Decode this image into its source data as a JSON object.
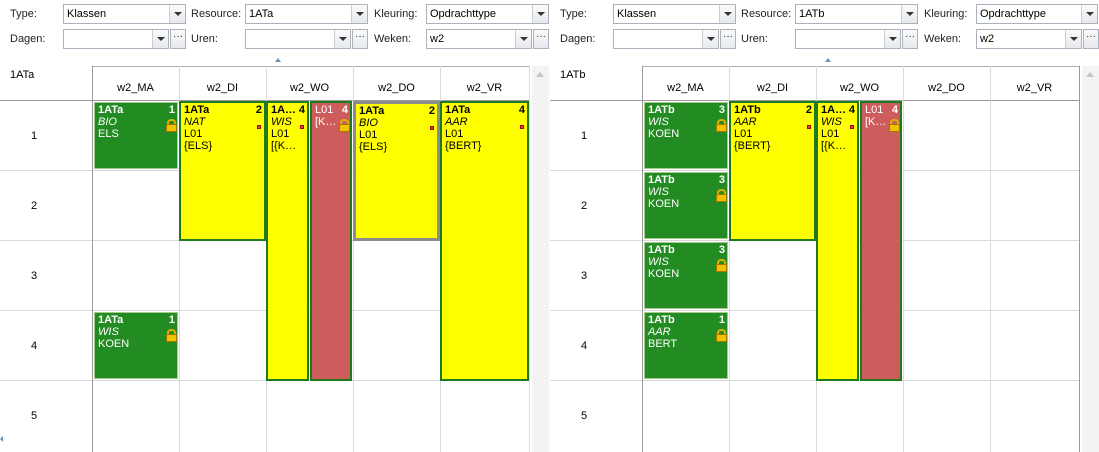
{
  "left": {
    "filters": {
      "type_label": "Type:",
      "type_value": "Klassen",
      "resource_label": "Resource:",
      "resource_value": "1ATa",
      "kleuring_label": "Kleuring:",
      "kleuring_value": "Opdrachttype",
      "dagen_label": "Dagen:",
      "dagen_value": "",
      "uren_label": "Uren:",
      "uren_value": "",
      "weken_label": "Weken:",
      "weken_value": "w2",
      "ellipsis": "···"
    },
    "resource_name": "1ATa",
    "days": [
      "w2_MA",
      "w2_DI",
      "w2_WO",
      "w2_DO",
      "w2_VR"
    ],
    "rows": [
      "1",
      "2",
      "3",
      "4",
      "5"
    ],
    "cards": [
      {
        "title": "1ATa",
        "num": "1",
        "subject": "BIO",
        "line1": "ELS",
        "line2": "",
        "line3": ""
      },
      {
        "title": "1ATa",
        "num": "1",
        "subject": "WIS",
        "line1": "KOEN",
        "line2": "",
        "line3": ""
      },
      {
        "title": "1ATa",
        "num": "2",
        "subject": "NAT",
        "line1": "L01",
        "line2": "{ELS}",
        "line3": ""
      },
      {
        "title": "1A…",
        "num": "4",
        "subject": "WIS",
        "line1": "L01",
        "line2": "[{K…",
        "line3": ""
      },
      {
        "title": "L01",
        "num": "4",
        "subject": "",
        "line1": "[K…",
        "line2": "",
        "line3": ""
      },
      {
        "title": "1ATa",
        "num": "2",
        "subject": "BIO",
        "line1": "L01",
        "line2": "{ELS}",
        "line3": ""
      },
      {
        "title": "1ATa",
        "num": "4",
        "subject": "AAR",
        "line1": "L01",
        "line2": "{BERT}",
        "line3": ""
      }
    ]
  },
  "right": {
    "filters": {
      "type_label": "Type:",
      "type_value": "Klassen",
      "resource_label": "Resource:",
      "resource_value": "1ATb",
      "kleuring_label": "Kleuring:",
      "kleuring_value": "Opdrachttype",
      "dagen_label": "Dagen:",
      "dagen_value": "",
      "uren_label": "Uren:",
      "uren_value": "",
      "weken_label": "Weken:",
      "weken_value": "w2",
      "ellipsis": "···"
    },
    "resource_name": "1ATb",
    "days": [
      "w2_MA",
      "w2_DI",
      "w2_WO",
      "w2_DO",
      "w2_VR"
    ],
    "rows": [
      "1",
      "2",
      "3",
      "4",
      "5"
    ],
    "cards": [
      {
        "title": "1ATb",
        "num": "3",
        "subject": "WIS",
        "line1": "KOEN",
        "line2": ""
      },
      {
        "title": "1ATb",
        "num": "3",
        "subject": "WIS",
        "line1": "KOEN",
        "line2": ""
      },
      {
        "title": "1ATb",
        "num": "3",
        "subject": "WIS",
        "line1": "KOEN",
        "line2": ""
      },
      {
        "title": "1ATb",
        "num": "1",
        "subject": "AAR",
        "line1": "BERT",
        "line2": ""
      },
      {
        "title": "1ATb",
        "num": "2",
        "subject": "AAR",
        "line1": "L01",
        "line2": "{BERT}"
      },
      {
        "title": "1A…",
        "num": "4",
        "subject": "WIS",
        "line1": "L01",
        "line2": "[{K…"
      },
      {
        "title": "L01",
        "num": "4",
        "subject": "",
        "line1": "[K…",
        "line2": ""
      }
    ]
  },
  "colors": {
    "lesson_green": "#228b22",
    "lesson_yellow": "#ffff00",
    "lesson_red": "#cd5c5c",
    "border_green": "#1e7a1e"
  }
}
